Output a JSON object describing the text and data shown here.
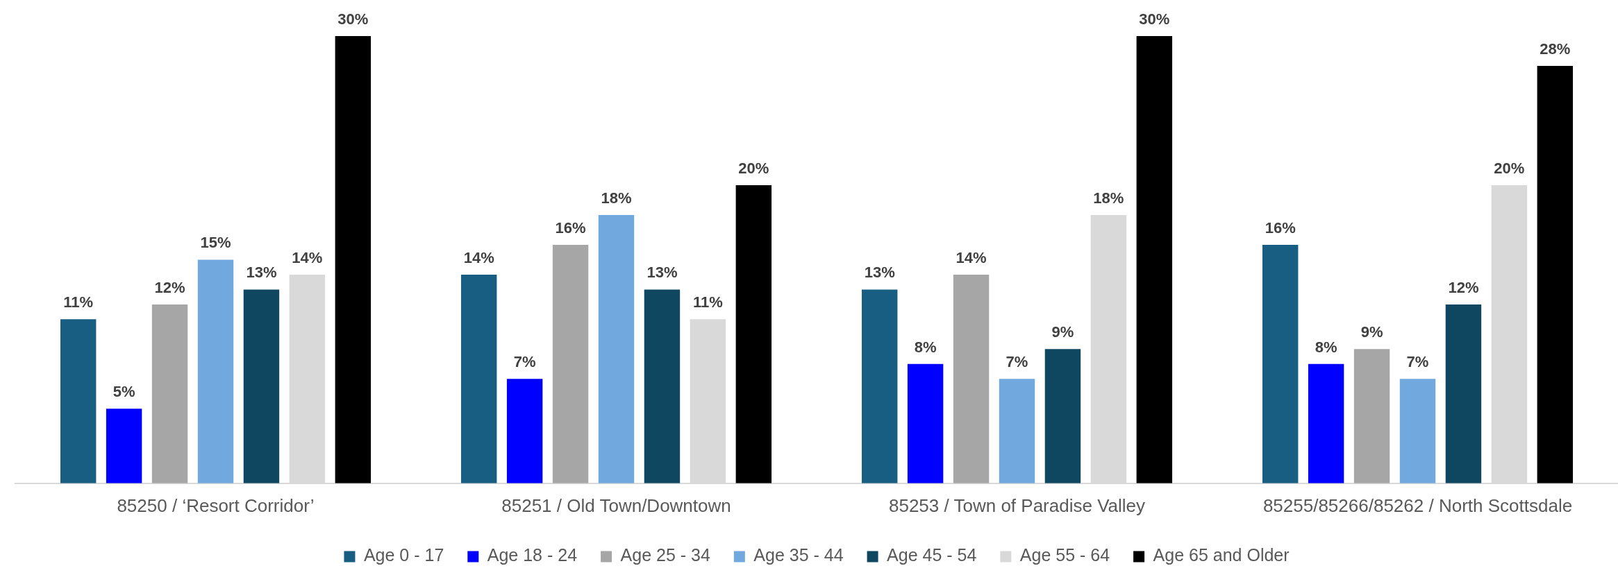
{
  "chart_data": {
    "type": "bar",
    "categories": [
      "85250 / ‘Resort Corridor’",
      "85251 / Old Town/Downtown",
      "85253 / Town of Paradise Valley",
      "85255/85266/85262 / North Scottsdale"
    ],
    "series": [
      {
        "name": "Age 0 - 17",
        "color": "#175e82",
        "values": [
          11,
          14,
          13,
          16
        ],
        "value_labels": [
          "11%",
          "14%",
          "13%",
          "16%"
        ]
      },
      {
        "name": "Age 18 - 24",
        "color": "#0000ff",
        "values": [
          5,
          7,
          8,
          8
        ],
        "value_labels": [
          "5%",
          "7%",
          "8%",
          "8%"
        ]
      },
      {
        "name": "Age 25 - 34",
        "color": "#a6a6a6",
        "values": [
          12,
          16,
          14,
          9
        ],
        "value_labels": [
          "12%",
          "16%",
          "14%",
          "9%"
        ]
      },
      {
        "name": "Age 35 - 44",
        "color": "#71a8de",
        "values": [
          15,
          18,
          7,
          7
        ],
        "value_labels": [
          "15%",
          "18%",
          "7%",
          "7%"
        ]
      },
      {
        "name": "Age 45 - 54",
        "color": "#0f4660",
        "values": [
          13,
          13,
          9,
          12
        ],
        "value_labels": [
          "13%",
          "13%",
          "9%",
          "12%"
        ]
      },
      {
        "name": "Age 55 - 64",
        "color": "#d9d9d9",
        "values": [
          14,
          11,
          18,
          20
        ],
        "value_labels": [
          "14%",
          "11%",
          "18%",
          "20%"
        ]
      },
      {
        "name": "Age 65 and Older",
        "color": "#000000",
        "values": [
          30,
          20,
          30,
          28
        ],
        "value_labels": [
          "30%",
          "20%",
          "30%",
          "28%"
        ]
      }
    ],
    "legend": "bottom",
    "tick_labels": "x"
  }
}
